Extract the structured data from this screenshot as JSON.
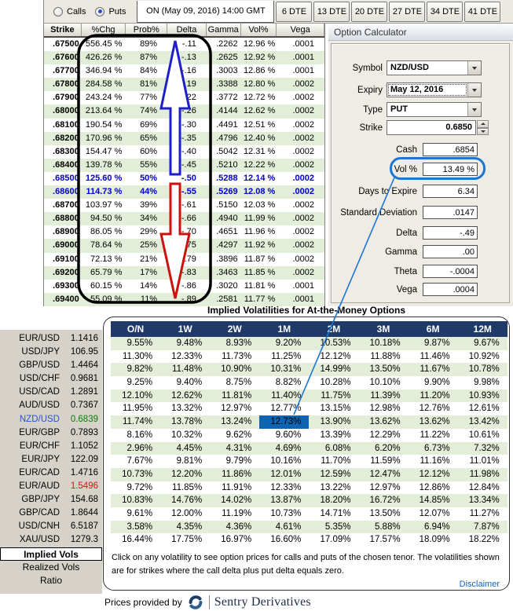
{
  "top_bar": {
    "radios": [
      {
        "label": "Calls",
        "selected": false
      },
      {
        "label": "Puts",
        "selected": true
      }
    ],
    "date_display": "ON (May 09, 2016) 14:00 GMT",
    "dte_tabs": [
      "6 DTE",
      "13 DTE",
      "20 DTE",
      "27 DTE",
      "34 DTE",
      "41 DTE"
    ]
  },
  "option_chain": {
    "columns": [
      "Strike",
      "%Chg",
      "Prob%",
      "Delta",
      "Gamma",
      "Vol%",
      "Vega"
    ],
    "rows": [
      {
        "values": [
          ".67500",
          "556.45 %",
          "89%",
          "-.11",
          ".2262",
          "12.96 %",
          ".0001"
        ],
        "atm": false
      },
      {
        "values": [
          ".67600",
          "426.26 %",
          "87%",
          "-.13",
          ".2625",
          "12.92 %",
          ".0001"
        ],
        "atm": false
      },
      {
        "values": [
          ".67700",
          "346.94 %",
          "84%",
          "-.16",
          ".3003",
          "12.86 %",
          ".0001"
        ],
        "atm": false
      },
      {
        "values": [
          ".67800",
          "284.58 %",
          "81%",
          "-.19",
          ".3388",
          "12.80 %",
          ".0002"
        ],
        "atm": false
      },
      {
        "values": [
          ".67900",
          "243.24 %",
          "77%",
          "-.22",
          ".3772",
          "12.72 %",
          ".0002"
        ],
        "atm": false
      },
      {
        "values": [
          ".68000",
          "213.64 %",
          "74%",
          "-.26",
          ".4144",
          "12.62 %",
          ".0002"
        ],
        "atm": false
      },
      {
        "values": [
          ".68100",
          "190.54 %",
          "69%",
          "-.30",
          ".4491",
          "12.51 %",
          ".0002"
        ],
        "atm": false
      },
      {
        "values": [
          ".68200",
          "170.96 %",
          "65%",
          "-.35",
          ".4796",
          "12.40 %",
          ".0002"
        ],
        "atm": false
      },
      {
        "values": [
          ".68300",
          "154.47 %",
          "60%",
          "-.40",
          ".5042",
          "12.31 %",
          ".0002"
        ],
        "atm": false
      },
      {
        "values": [
          ".68400",
          "139.78 %",
          "55%",
          "-.45",
          ".5210",
          "12.22 %",
          ".0002"
        ],
        "atm": false
      },
      {
        "values": [
          ".68500",
          "125.60 %",
          "50%",
          "-.50",
          ".5288",
          "12.14 %",
          ".0002"
        ],
        "atm": true
      },
      {
        "values": [
          ".68600",
          "114.73 %",
          "44%",
          "-.55",
          ".5269",
          "12.08 %",
          ".0002"
        ],
        "atm": true
      },
      {
        "values": [
          ".68700",
          "103.97 %",
          "39%",
          "-.61",
          ".5150",
          "12.03 %",
          ".0002"
        ],
        "atm": false
      },
      {
        "values": [
          ".68800",
          "94.50 %",
          "34%",
          "-.66",
          ".4940",
          "11.99 %",
          ".0002"
        ],
        "atm": false
      },
      {
        "values": [
          ".68900",
          "86.05 %",
          "29%",
          "-.70",
          ".4651",
          "11.96 %",
          ".0002"
        ],
        "atm": false
      },
      {
        "values": [
          ".69000",
          "78.64 %",
          "25%",
          "-.75",
          ".4297",
          "11.92 %",
          ".0002"
        ],
        "atm": false
      },
      {
        "values": [
          ".69100",
          "72.13 %",
          "21%",
          "-.79",
          ".3896",
          "11.87 %",
          ".0002"
        ],
        "atm": false
      },
      {
        "values": [
          ".69200",
          "65.79 %",
          "17%",
          "-.83",
          ".3463",
          "11.85 %",
          ".0002"
        ],
        "atm": false
      },
      {
        "values": [
          ".69300",
          "60.15 %",
          "14%",
          "-.86",
          ".3020",
          "11.81 %",
          ".0001"
        ],
        "atm": false
      },
      {
        "values": [
          ".69400",
          "55.09 %",
          "11%",
          "-.89",
          ".2581",
          "11.77 %",
          ".0001"
        ],
        "atm": false
      }
    ]
  },
  "calculator": {
    "title": "Option Calculator",
    "inputs": [
      {
        "label": "Symbol",
        "value": "NZD/USD",
        "control": "dropdown",
        "focused": false
      },
      {
        "label": "Expiry",
        "value": "May 12, 2016",
        "control": "dropdown",
        "focused": true
      },
      {
        "label": "Type",
        "value": "PUT",
        "control": "dropdown",
        "focused": false
      },
      {
        "label": "Strike",
        "value": "0.6850",
        "control": "spinner",
        "focused": false
      }
    ],
    "outputs": [
      {
        "label": "Cash",
        "value": ".6854",
        "highlight": false
      },
      {
        "label": "Vol %",
        "value": "13.49 %",
        "highlight": true
      },
      {
        "label": "Days to Expire",
        "value": "6.34",
        "highlight": false
      },
      {
        "label": "Standard Deviation",
        "value": ".0147",
        "highlight": false
      },
      {
        "label": "Delta",
        "value": "-.49",
        "highlight": false
      },
      {
        "label": "Gamma",
        "value": ".00",
        "highlight": false
      },
      {
        "label": "Theta",
        "value": "-.0004",
        "highlight": false
      },
      {
        "label": "Vega",
        "value": ".0004",
        "highlight": false
      }
    ]
  },
  "vol_matrix": {
    "title": "Implied Volatilities for At-the-Money Options",
    "tenors": [
      "O/N",
      "1W",
      "2W",
      "1M",
      "2M",
      "3M",
      "6M",
      "12M"
    ],
    "highlight": {
      "row": 6,
      "col": 3
    },
    "pairs": [
      {
        "name": "EUR/USD",
        "price": "1.1416",
        "active": false,
        "price_color": "",
        "vols": [
          "9.55%",
          "9.48%",
          "8.93%",
          "9.20%",
          "10.53%",
          "10.18%",
          "9.87%",
          "9.67%"
        ]
      },
      {
        "name": "USD/JPY",
        "price": "106.95",
        "active": false,
        "price_color": "",
        "vols": [
          "11.30%",
          "12.33%",
          "11.73%",
          "11.25%",
          "12.12%",
          "11.88%",
          "11.46%",
          "10.92%"
        ]
      },
      {
        "name": "GBP/USD",
        "price": "1.4464",
        "active": false,
        "price_color": "",
        "vols": [
          "9.82%",
          "11.48%",
          "10.90%",
          "10.31%",
          "14.99%",
          "13.50%",
          "11.67%",
          "10.78%"
        ]
      },
      {
        "name": "USD/CHF",
        "price": "0.9681",
        "active": false,
        "price_color": "",
        "vols": [
          "9.25%",
          "9.40%",
          "8.75%",
          "8.82%",
          "10.28%",
          "10.10%",
          "9.90%",
          "9.98%"
        ]
      },
      {
        "name": "USD/CAD",
        "price": "1.2891",
        "active": false,
        "price_color": "",
        "vols": [
          "12.10%",
          "12.62%",
          "11.81%",
          "11.40%",
          "11.75%",
          "11.39%",
          "11.20%",
          "10.93%"
        ]
      },
      {
        "name": "AUD/USD",
        "price": "0.7367",
        "active": false,
        "price_color": "",
        "vols": [
          "11.95%",
          "13.32%",
          "12.97%",
          "12.77%",
          "13.15%",
          "12.98%",
          "12.76%",
          "12.61%"
        ]
      },
      {
        "name": "NZD/USD",
        "price": "0.6839",
        "active": true,
        "price_color": "green",
        "vols": [
          "11.74%",
          "13.78%",
          "13.24%",
          "12.73%",
          "13.90%",
          "13.62%",
          "13.62%",
          "13.42%"
        ]
      },
      {
        "name": "EUR/GBP",
        "price": "0.7893",
        "active": false,
        "price_color": "",
        "vols": [
          "8.16%",
          "10.32%",
          "9.62%",
          "9.60%",
          "13.39%",
          "12.29%",
          "11.22%",
          "10.61%"
        ]
      },
      {
        "name": "EUR/CHF",
        "price": "1.1052",
        "active": false,
        "price_color": "",
        "vols": [
          "2.96%",
          "4.45%",
          "4.31%",
          "4.69%",
          "6.08%",
          "6.20%",
          "6.73%",
          "7.32%"
        ]
      },
      {
        "name": "EUR/JPY",
        "price": "122.09",
        "active": false,
        "price_color": "",
        "vols": [
          "7.67%",
          "9.81%",
          "9.79%",
          "10.16%",
          "11.70%",
          "11.59%",
          "11.16%",
          "11.01%"
        ]
      },
      {
        "name": "EUR/CAD",
        "price": "1.4716",
        "active": false,
        "price_color": "",
        "vols": [
          "10.73%",
          "12.20%",
          "11.86%",
          "12.01%",
          "12.59%",
          "12.47%",
          "12.12%",
          "11.98%"
        ]
      },
      {
        "name": "EUR/AUD",
        "price": "1.5496",
        "active": false,
        "price_color": "red",
        "vols": [
          "9.72%",
          "11.85%",
          "11.91%",
          "12.33%",
          "13.22%",
          "12.97%",
          "12.86%",
          "12.84%"
        ]
      },
      {
        "name": "GBP/JPY",
        "price": "154.68",
        "active": false,
        "price_color": "",
        "vols": [
          "10.83%",
          "14.76%",
          "14.02%",
          "13.87%",
          "18.20%",
          "16.72%",
          "14.85%",
          "13.34%"
        ]
      },
      {
        "name": "GBP/CAD",
        "price": "1.8644",
        "active": false,
        "price_color": "",
        "vols": [
          "9.61%",
          "12.00%",
          "11.19%",
          "10.73%",
          "14.71%",
          "13.50%",
          "12.07%",
          "11.27%"
        ]
      },
      {
        "name": "USD/CNH",
        "price": "6.5187",
        "active": false,
        "price_color": "",
        "vols": [
          "3.58%",
          "4.35%",
          "4.36%",
          "4.61%",
          "5.35%",
          "5.88%",
          "6.94%",
          "7.87%"
        ]
      },
      {
        "name": "XAU/USD",
        "price": "1279.3",
        "active": false,
        "price_color": "",
        "vols": [
          "16.44%",
          "17.75%",
          "16.97%",
          "16.60%",
          "17.09%",
          "17.57%",
          "18.09%",
          "18.22%"
        ]
      }
    ],
    "note": "Click on any volatility to see option prices for calls and puts of the chosen tenor. The volatilities shown are for strikes where the call delta plus put delta equals zero.",
    "disclaimer": "Disclaimer"
  },
  "sidebar_tabs": [
    {
      "label": "Implied Vols",
      "selected": true
    },
    {
      "label": "Realized Vols",
      "selected": false
    },
    {
      "label": "Ratio",
      "selected": false
    }
  ],
  "footer": {
    "prefix": "Prices provided by",
    "brand": "Sentry Derivatives"
  },
  "colors": {
    "atm_text": "#0000C8",
    "table_green": "#E3EED8",
    "matrix_green": "#E4EDD8",
    "matrix_header": "#1F3A68",
    "highlight_cell": "#0F63B0",
    "annotation_blue": "#1F1FC8",
    "annotation_red": "#CC1111",
    "callout_blue": "#1A76D4",
    "active_pair": "#2A52D0",
    "price_up_green": "#0B7A0B",
    "price_down_red": "#E01212",
    "link_blue": "#0B62C4",
    "brand_navy": "#1E2B45"
  }
}
